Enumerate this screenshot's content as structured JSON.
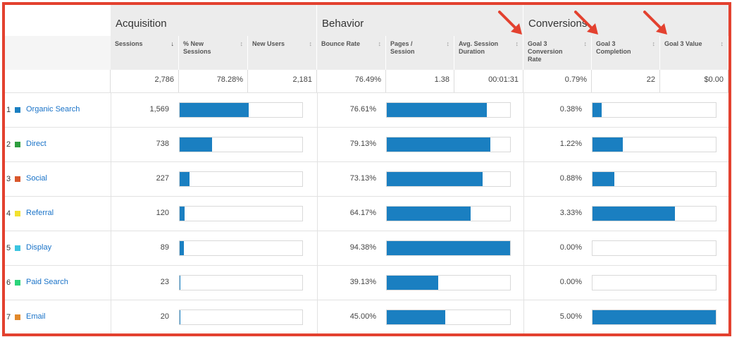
{
  "groups": {
    "acquisition": "Acquisition",
    "behavior": "Behavior",
    "conversions": "Conversions"
  },
  "columns": {
    "sessions": "Sessions",
    "pct_new": "% New Sessions",
    "new_users": "New Users",
    "bounce": "Bounce Rate",
    "pages": "Pages / Session",
    "duration": "Avg. Session Duration",
    "conv_rate": "Goal 3 Conversion Rate",
    "completion": "Goal 3 Completion",
    "value": "Goal 3 Value"
  },
  "totals": {
    "sessions": "2,786",
    "pct_new": "78.28%",
    "new_users": "2,181",
    "bounce": "76.49%",
    "pages": "1.38",
    "duration": "00:01:31",
    "conv_rate": "0.79%",
    "completion": "22",
    "value": "$0.00"
  },
  "rows": [
    {
      "num": "1",
      "source": "Organic Search",
      "color": "#1a7fc1",
      "sessions": "1,569",
      "sessions_share": 0.5632,
      "bounce": "76.61%",
      "bounce_share": 0.8117,
      "conv": "0.38%",
      "completion_share": 0.076
    },
    {
      "num": "2",
      "source": "Direct",
      "color": "#2e9e3f",
      "sessions": "738",
      "sessions_share": 0.2649,
      "bounce": "79.13%",
      "bounce_share": 0.8384,
      "conv": "1.22%",
      "completion_share": 0.244
    },
    {
      "num": "3",
      "source": "Social",
      "color": "#d9572c",
      "sessions": "227",
      "sessions_share": 0.0815,
      "bounce": "73.13%",
      "bounce_share": 0.7749,
      "conv": "0.88%",
      "completion_share": 0.176
    },
    {
      "num": "4",
      "source": "Referral",
      "color": "#f2e12f",
      "sessions": "120",
      "sessions_share": 0.0431,
      "bounce": "64.17%",
      "bounce_share": 0.6799,
      "conv": "3.33%",
      "completion_share": 0.666
    },
    {
      "num": "5",
      "source": "Display",
      "color": "#3cc4e0",
      "sessions": "89",
      "sessions_share": 0.0319,
      "bounce": "94.38%",
      "bounce_share": 1.0,
      "conv": "0.00%",
      "completion_share": 0
    },
    {
      "num": "6",
      "source": "Paid Search",
      "color": "#2bd47a",
      "sessions": "23",
      "sessions_share": 0.0083,
      "bounce": "39.13%",
      "bounce_share": 0.4146,
      "conv": "0.00%",
      "completion_share": 0
    },
    {
      "num": "7",
      "source": "Email",
      "color": "#e2892b",
      "sessions": "20",
      "sessions_share": 0.0072,
      "bounce": "45.00%",
      "bounce_share": 0.4768,
      "conv": "5.00%",
      "completion_share": 1.0
    }
  ],
  "colors": {
    "accent": "#e3412f",
    "bar": "#1a7fc1",
    "link": "#1a73c8"
  },
  "icons": {
    "sort": "sort-arrow-icon",
    "annotation": "red-arrow-icon"
  }
}
